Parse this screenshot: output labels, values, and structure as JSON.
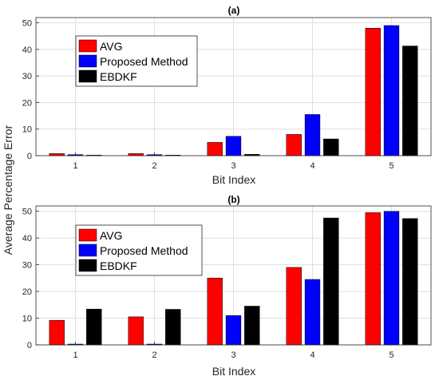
{
  "shared_ylabel": "Average Percentage Error",
  "chart_data": [
    {
      "type": "bar",
      "title": "(a)",
      "xlabel": "Bit Index",
      "ylabel": "",
      "categories": [
        "1",
        "2",
        "3",
        "4",
        "5"
      ],
      "ylim": [
        0,
        52
      ],
      "yticks": [
        0,
        10,
        20,
        30,
        40,
        50
      ],
      "grid": true,
      "legend_position": "top-left",
      "series": [
        {
          "name": "AVG",
          "color": "#ff0000",
          "values": [
            0.8,
            0.8,
            5.0,
            8.0,
            48.0
          ]
        },
        {
          "name": "Proposed Method",
          "color": "#0000ff",
          "values": [
            0.4,
            0.4,
            7.3,
            15.5,
            49.0
          ]
        },
        {
          "name": "EBDKF",
          "color": "#000000",
          "values": [
            0.2,
            0.2,
            0.5,
            6.3,
            41.3
          ]
        }
      ]
    },
    {
      "type": "bar",
      "title": "(b)",
      "xlabel": "Bit Index",
      "ylabel": "",
      "categories": [
        "1",
        "2",
        "3",
        "4",
        "5"
      ],
      "ylim": [
        0,
        52
      ],
      "yticks": [
        0,
        10,
        20,
        30,
        40,
        50
      ],
      "grid": true,
      "legend_position": "top-left",
      "series": [
        {
          "name": "AVG",
          "color": "#ff0000",
          "values": [
            9.2,
            10.5,
            25.0,
            29.0,
            49.5
          ]
        },
        {
          "name": "Proposed Method",
          "color": "#0000ff",
          "values": [
            0.3,
            0.3,
            11.0,
            24.5,
            50.0
          ]
        },
        {
          "name": "EBDKF",
          "color": "#000000",
          "values": [
            13.4,
            13.3,
            14.5,
            47.5,
            47.3
          ]
        }
      ]
    }
  ]
}
